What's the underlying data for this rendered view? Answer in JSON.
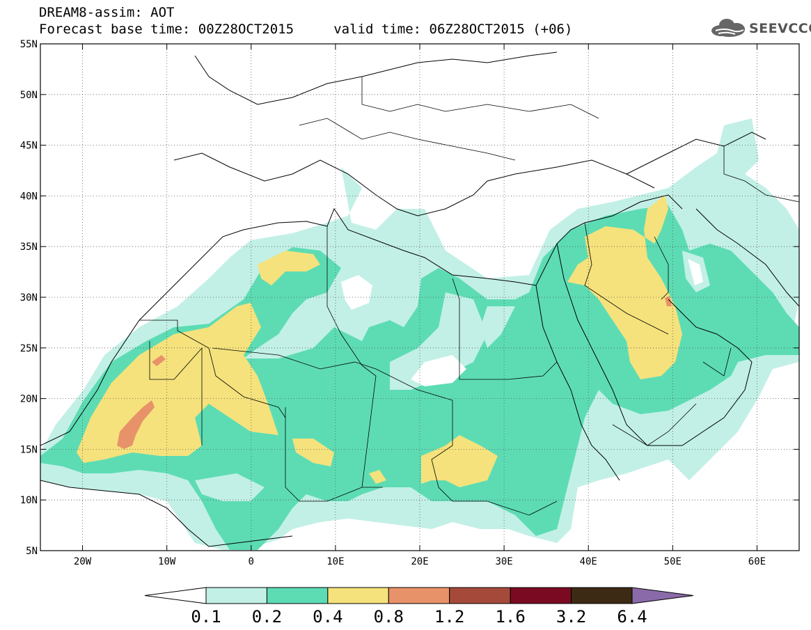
{
  "header": {
    "line1": "DREAM8-assim: AOT",
    "line2": "Forecast base time: 00Z28OCT2015     valid time: 06Z28OCT2015 (+06)",
    "logo_text": "SEEVCCC",
    "logo_icon": "cloud-icon"
  },
  "map": {
    "lon_range": [
      -25,
      65
    ],
    "lat_range": [
      5,
      55
    ],
    "lat_ticks": [
      {
        "value": 55,
        "label": "55N"
      },
      {
        "value": 50,
        "label": "50N"
      },
      {
        "value": 45,
        "label": "45N"
      },
      {
        "value": 40,
        "label": "40N"
      },
      {
        "value": 35,
        "label": "35N"
      },
      {
        "value": 30,
        "label": "30N"
      },
      {
        "value": 25,
        "label": "25N"
      },
      {
        "value": 20,
        "label": "20N"
      },
      {
        "value": 15,
        "label": "15N"
      },
      {
        "value": 10,
        "label": "10N"
      },
      {
        "value": 5,
        "label": "5N"
      }
    ],
    "lon_ticks": [
      {
        "value": -20,
        "label": "20W"
      },
      {
        "value": -10,
        "label": "10W"
      },
      {
        "value": 0,
        "label": "0"
      },
      {
        "value": 10,
        "label": "10E"
      },
      {
        "value": 20,
        "label": "20E"
      },
      {
        "value": 30,
        "label": "30E"
      },
      {
        "value": 40,
        "label": "40E"
      },
      {
        "value": 50,
        "label": "50E"
      },
      {
        "value": 60,
        "label": "60E"
      }
    ]
  },
  "colorbar": {
    "levels": [
      "0.1",
      "0.2",
      "0.4",
      "0.8",
      "1.2",
      "1.6",
      "3.2",
      "6.4"
    ],
    "colors": [
      "#ffffff",
      "#c2f0e6",
      "#5ddcb4",
      "#f5e27c",
      "#e8926a",
      "#a54a3a",
      "#7a0a22",
      "#3d2a14",
      "#8a6aa8"
    ]
  }
}
